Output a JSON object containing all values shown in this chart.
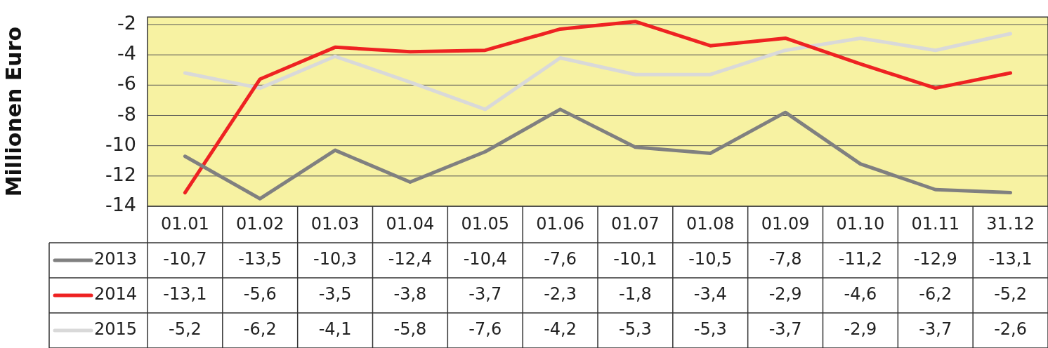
{
  "chart_data": {
    "type": "line",
    "ylabel": "Millionen Euro",
    "categories": [
      "01.01",
      "01.02",
      "01.03",
      "01.04",
      "01.05",
      "01.06",
      "01.07",
      "01.08",
      "01.09",
      "01.10",
      "01.11",
      "31.12"
    ],
    "series": [
      {
        "name": "2013",
        "color": "#808080",
        "values": [
          -10.7,
          -13.5,
          -10.3,
          -12.4,
          -10.4,
          -7.6,
          -10.1,
          -10.5,
          -7.8,
          -11.2,
          -12.9,
          -13.1
        ],
        "value_labels": [
          "-10,7",
          "-13,5",
          "-10,3",
          "-12,4",
          "-10,4",
          "-7,6",
          "-10,1",
          "-10,5",
          "-7,8",
          "-11,2",
          "-12,9",
          "-13,1"
        ]
      },
      {
        "name": "2014",
        "color": "#ee2222",
        "values": [
          -13.1,
          -5.6,
          -3.5,
          -3.8,
          -3.7,
          -2.3,
          -1.8,
          -3.4,
          -2.9,
          -4.6,
          -6.2,
          -5.2
        ],
        "value_labels": [
          "-13,1",
          "-5,6",
          "-3,5",
          "-3,8",
          "-3,7",
          "-2,3",
          "-1,8",
          "-3,4",
          "-2,9",
          "-4,6",
          "-6,2",
          "-5,2"
        ]
      },
      {
        "name": "2015",
        "color": "#d9d9d9",
        "values": [
          -5.2,
          -6.2,
          -4.1,
          -5.8,
          -7.6,
          -4.2,
          -5.3,
          -5.3,
          -3.7,
          -2.9,
          -3.7,
          -2.6
        ],
        "value_labels": [
          "-5,2",
          "-6,2",
          "-4,1",
          "-5,8",
          "-7,6",
          "-4,2",
          "-5,3",
          "-5,3",
          "-3,7",
          "-2,9",
          "-3,7",
          "-2,6"
        ]
      }
    ],
    "ylim": [
      -14,
      -1.5
    ],
    "yticks": [
      -14,
      -12,
      -10,
      -8,
      -6,
      -4,
      -2
    ],
    "grid": "y",
    "legend": "bottom",
    "marker": "none",
    "line_style": "solid"
  }
}
